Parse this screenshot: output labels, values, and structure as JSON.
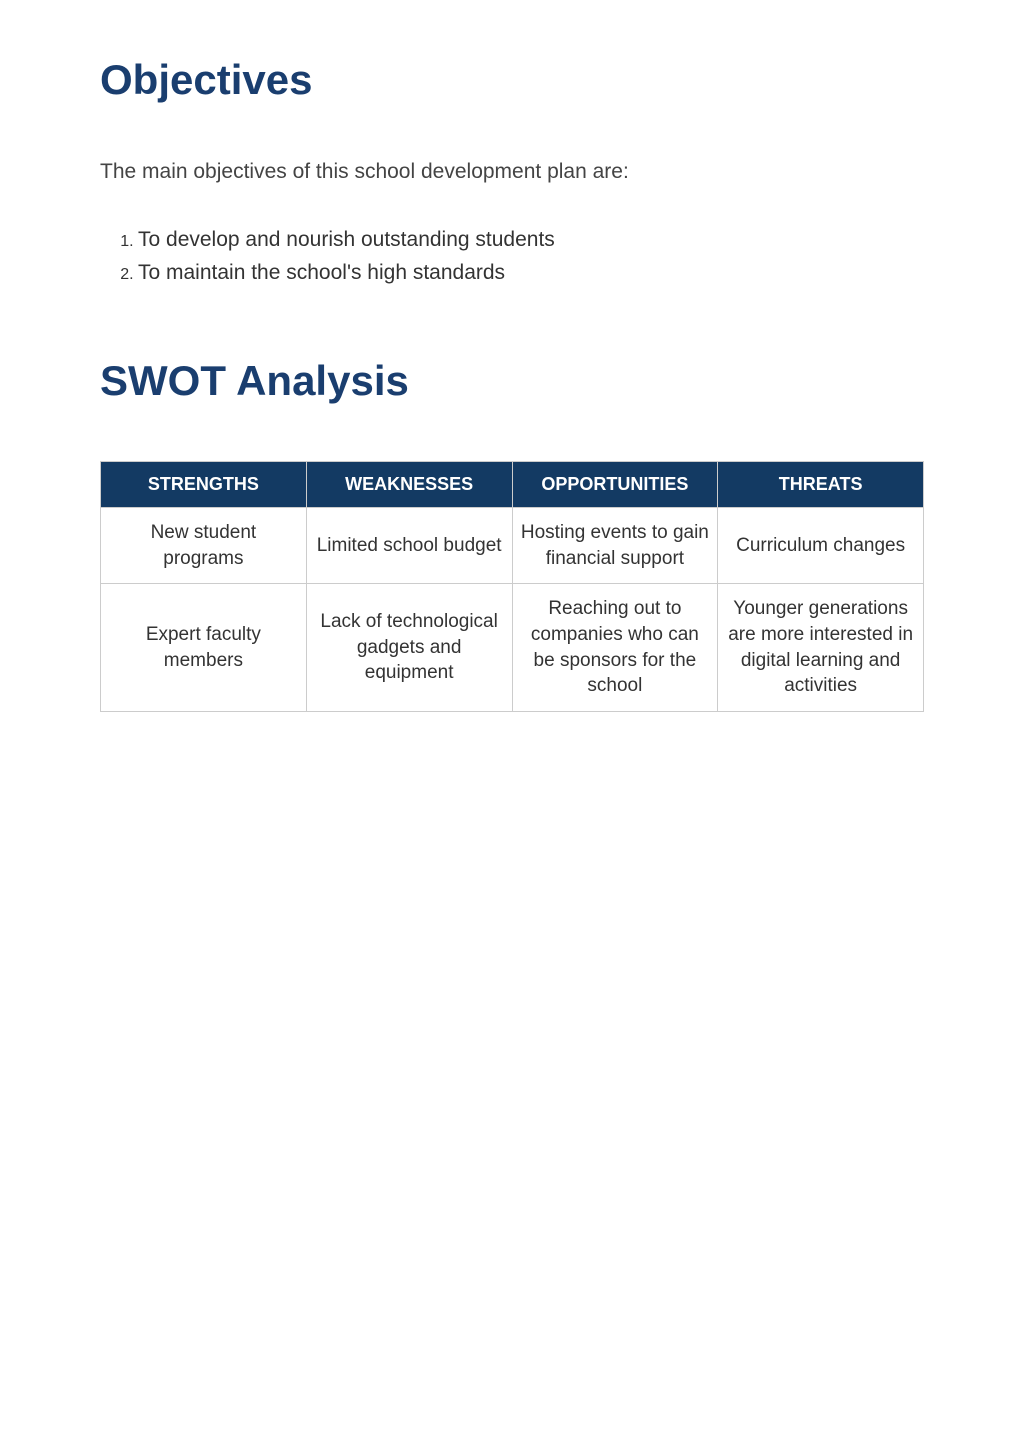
{
  "colors": {
    "heading": "#1a3e6f",
    "table_header_bg": "#133a63",
    "table_header_text": "#ffffff",
    "body_text": "#333333",
    "border": "#cccccc"
  },
  "objectives": {
    "heading": "Objectives",
    "intro": "The main objectives of this school development plan are:",
    "items": [
      "To develop and nourish outstanding students",
      "To maintain the school's high standards"
    ]
  },
  "swot": {
    "heading": "SWOT Analysis",
    "columns": [
      "STRENGTHS",
      "WEAKNESSES",
      "OPPORTUNITIES",
      "THREATS"
    ],
    "rows": [
      [
        "New student programs",
        "Limited school budget",
        "Hosting events to gain financial support",
        "Curriculum changes"
      ],
      [
        "Expert faculty members",
        "Lack of technological gadgets and equipment",
        "Reaching out to companies who can be sponsors for the school",
        "Younger generations are more interested in digital learning and activities"
      ]
    ]
  }
}
